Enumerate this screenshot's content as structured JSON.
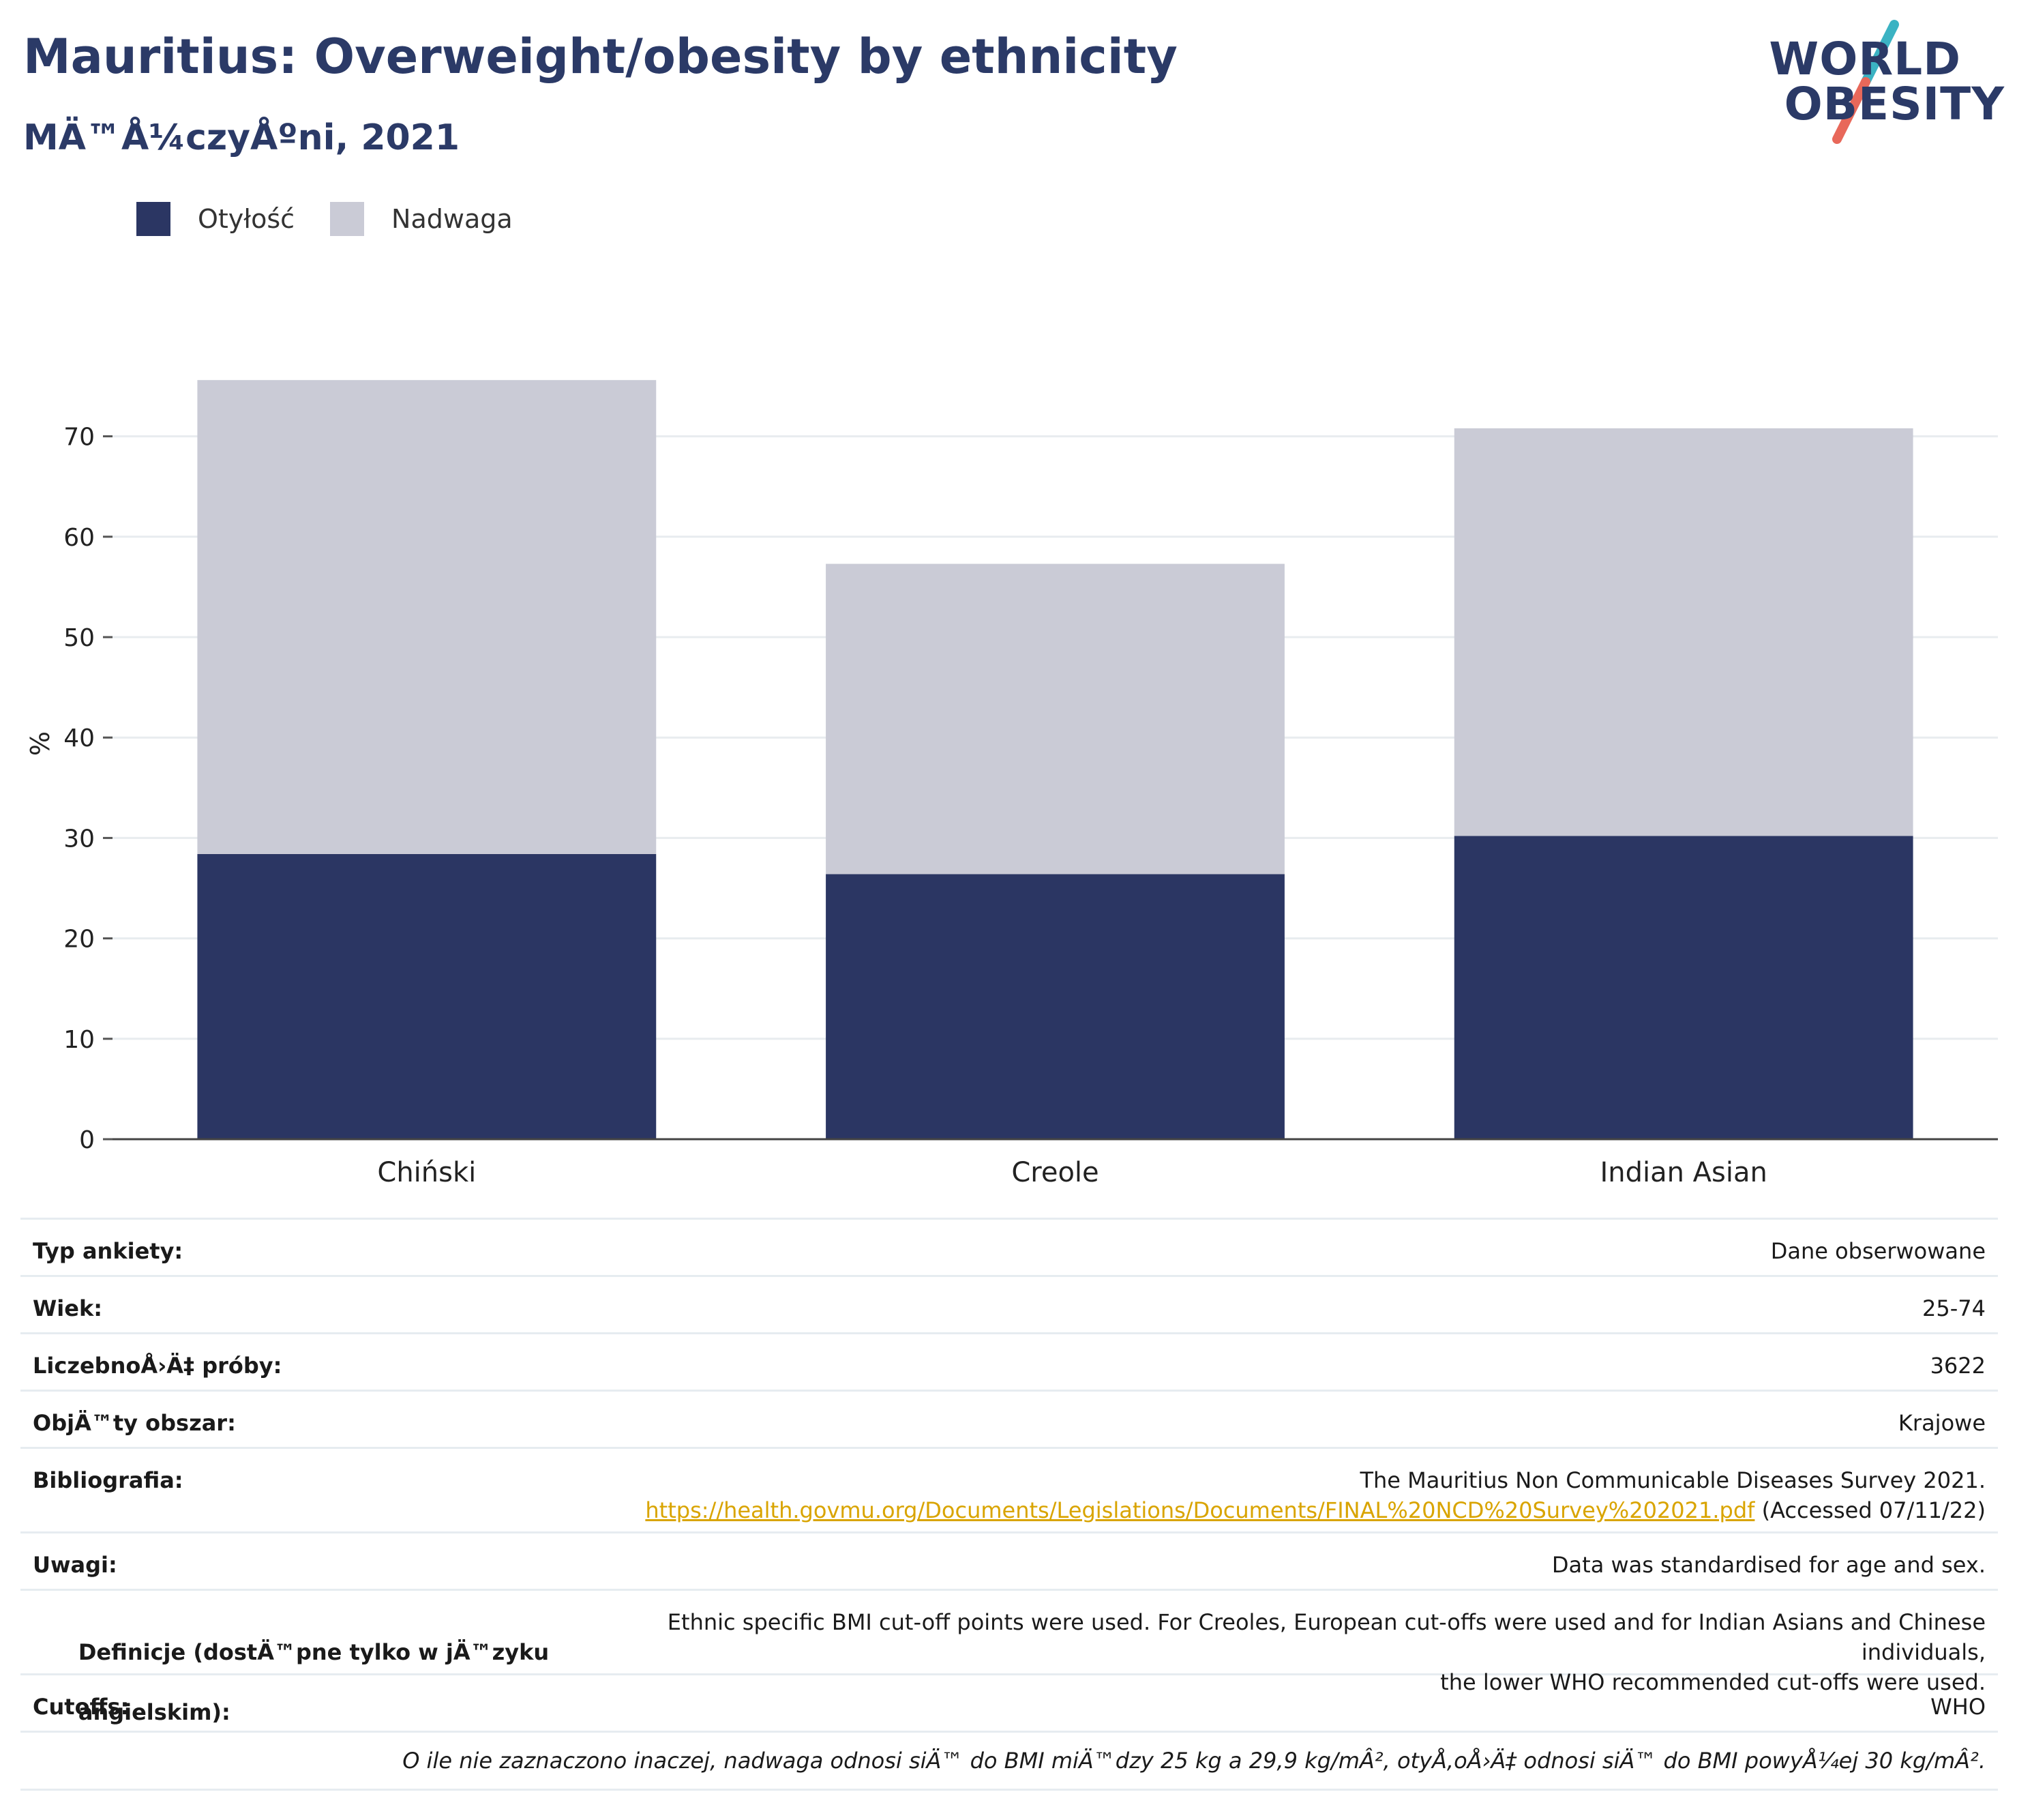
{
  "header": {
    "title": "Mauritius: Overweight/obesity by ethnicity",
    "subtitle": "MÄ™Å¼czyÅºni, 2021"
  },
  "logo": {
    "line1": "WORLD",
    "line2": "OBESITY",
    "colors": {
      "text": "#2b3a67",
      "slash_top": "#3bb3c3",
      "slash_bottom": "#e8685a"
    }
  },
  "legend": [
    {
      "label": "Otyłość",
      "color": "#2b3663"
    },
    {
      "label": "Nadwaga",
      "color": "#cacbd6"
    }
  ],
  "chart_data": {
    "type": "bar",
    "stacked": true,
    "categories": [
      "Chiński",
      "Creole",
      "Indian Asian"
    ],
    "series": [
      {
        "name": "Otyłość",
        "values": [
          28.4,
          26.4,
          30.2
        ],
        "color": "#2b3663"
      },
      {
        "name": "Nadwaga",
        "values": [
          47.2,
          30.9,
          40.6
        ],
        "color": "#cacbd6"
      }
    ],
    "totals": [
      75.6,
      57.3,
      70.8
    ],
    "ylabel": "%",
    "ylim": [
      0,
      80
    ],
    "yticks": [
      0,
      10,
      20,
      30,
      40,
      50,
      60,
      70
    ],
    "grid": true,
    "legend_position": "top-left"
  },
  "meta": {
    "rows": [
      {
        "key": "Typ ankiety:",
        "value": "Dane obserwowane"
      },
      {
        "key": "Wiek:",
        "value": "25-74"
      },
      {
        "key": "LiczebnoÅ›Ä‡ próby:",
        "value": "3622"
      },
      {
        "key": "ObjÄ™ty obszar:",
        "value": "Krajowe"
      }
    ],
    "bibliography": {
      "key": "Bibliografia:",
      "line1": "The Mauritius Non Communicable Diseases Survey 2021.",
      "link": "https://health.govmu.org/Documents/Legislations/Documents/FINAL%20NCD%20Survey%202021.pdf",
      "accessed": " (Accessed 07/11/22)"
    },
    "notes": {
      "key": "Uwagi:",
      "value": "Data was standardised for age and sex."
    },
    "definitions": {
      "key_line1": "Definicje (dostÄ™pne tylko w jÄ™zyku",
      "key_line2": "angielskim):",
      "value_line1": "Ethnic specific BMI cut-off points were used. For Creoles, European cut-offs were used and for Indian Asians and Chinese individuals,",
      "value_line2": "the lower WHO recommended cut-offs were used."
    },
    "cutoffs": {
      "key": "Cutoffs:",
      "value": "WHO"
    },
    "footnote": "O ile nie zaznaczono inaczej, nadwaga odnosi siÄ™ do BMI miÄ™dzy 25 kg a 29,9 kg/mÂ², otyÅ‚oÅ›Ä‡ odnosi siÄ™ do BMI powyÅ¼ej 30 kg/mÂ²."
  }
}
